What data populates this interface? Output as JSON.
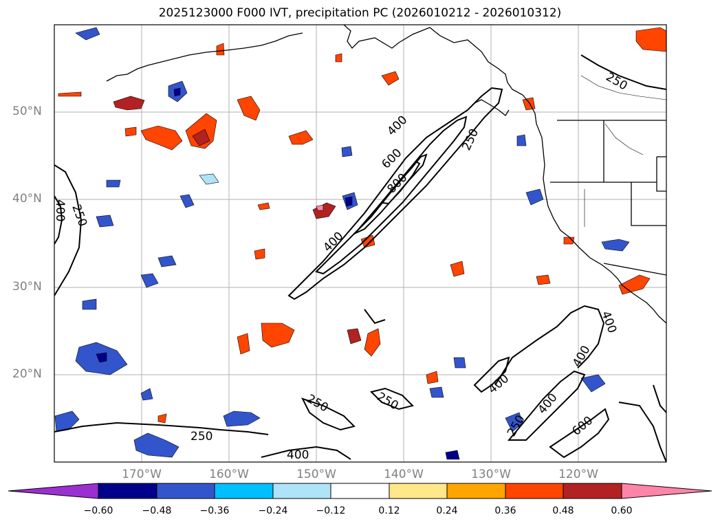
{
  "title": "2025123000 F000 IVT, precipitation PC (2026010212 - 2026010312)",
  "lat_labels": [
    "50°N",
    "40°N",
    "30°N",
    "20°N"
  ],
  "lon_labels": [
    "170°W",
    "160°W",
    "150°W",
    "140°W",
    "130°W",
    "120°W"
  ],
  "contour_labels": [
    "250",
    "400",
    "600",
    "800"
  ],
  "colorbar": {
    "ticks": [
      "−0.60",
      "−0.48",
      "−0.36",
      "−0.24",
      "−0.12",
      "0.12",
      "0.24",
      "0.36",
      "0.48",
      "0.60"
    ],
    "colors": {
      "under": "#9b30d0",
      "neg_060": "#00008b",
      "neg_048": "#3355cc",
      "neg_036": "#00bfff",
      "neg_024": "#aee3f8",
      "neutral": "#ffffff",
      "pos_012": "#ffe88a",
      "pos_024": "#ffa500",
      "pos_036": "#ff4500",
      "pos_048": "#b22222",
      "over": "#ff85a8"
    }
  }
}
